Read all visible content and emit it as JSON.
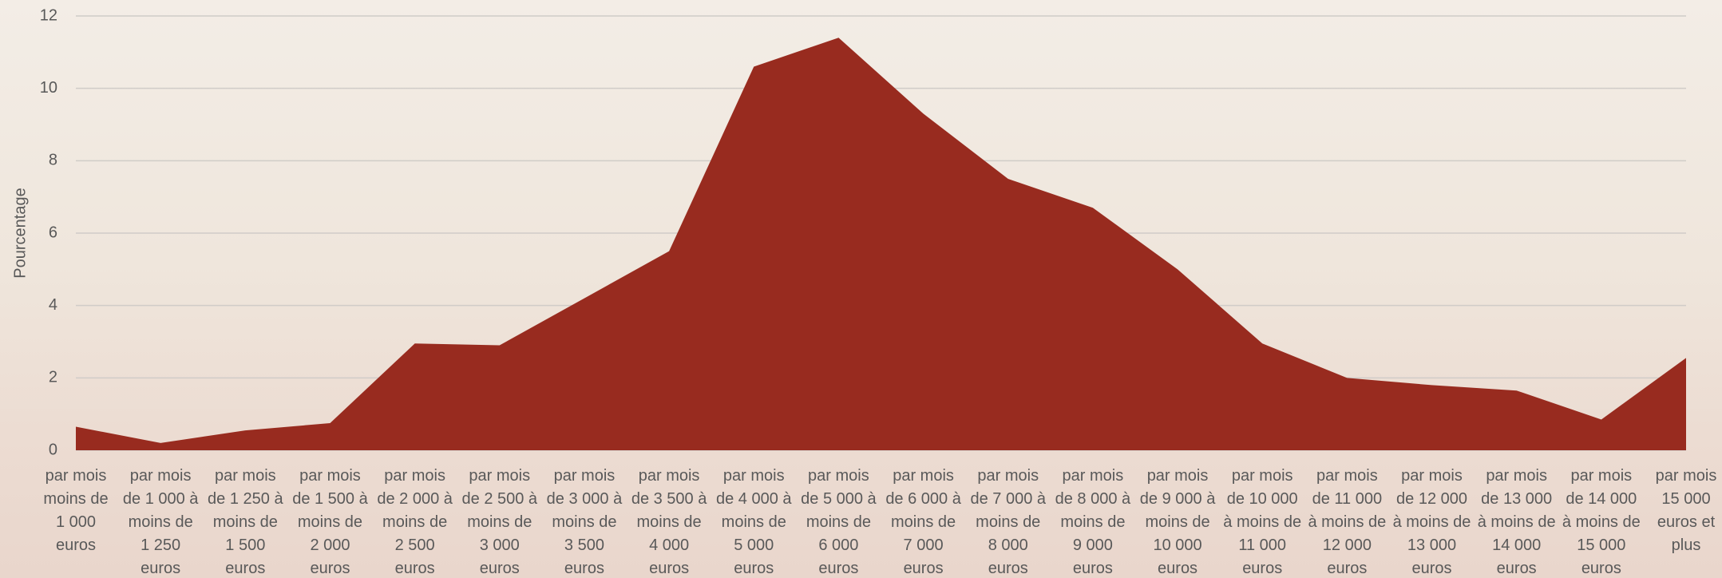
{
  "chart_data": {
    "type": "area",
    "y_label": "Pourcentage",
    "categories": [
      "par mois moins de 1 000 euros",
      "par mois de 1 000 à moins de 1 250 euros",
      "par mois de 1 250 à moins de 1 500 euros",
      "par mois de 1 500 à moins de 2 000 euros",
      "par mois de 2 000 à moins de 2 500 euros",
      "par mois de 2 500 à moins de 3 000 euros",
      "par mois de 3 000 à moins de 3 500 euros",
      "par mois de 3 500 à moins de 4 000 euros",
      "par mois de 4 000 à moins de 5 000 euros",
      "par mois de 5 000 à moins de 6 000 euros",
      "par mois de 6 000 à moins de 7 000 euros",
      "par mois de 7 000 à moins de 8 000 euros",
      "par mois de 8 000 à moins de 9 000 euros",
      "par mois de 9 000 à moins de 10 000 euros",
      "par mois de 10 000 à moins de 11 000 euros",
      "par mois de 11 000 à moins de 12 000 euros",
      "par mois de 12 000 à moins de 13 000 euros",
      "par mois de 13 000 à moins de 14 000 euros",
      "par mois de 14 000 à moins de 15 000 euros",
      "par mois 15 000 euros et plus"
    ],
    "values": [
      0.65,
      0.2,
      0.55,
      0.75,
      2.95,
      2.9,
      4.2,
      5.5,
      10.6,
      11.4,
      9.3,
      7.5,
      6.7,
      5.0,
      2.95,
      2.0,
      1.8,
      1.65,
      0.85,
      2.55
    ],
    "color": "#982b1f",
    "ylim": [
      0,
      12
    ],
    "yticks": [
      0,
      2,
      4,
      6,
      8,
      10,
      12
    ],
    "grid": true
  }
}
